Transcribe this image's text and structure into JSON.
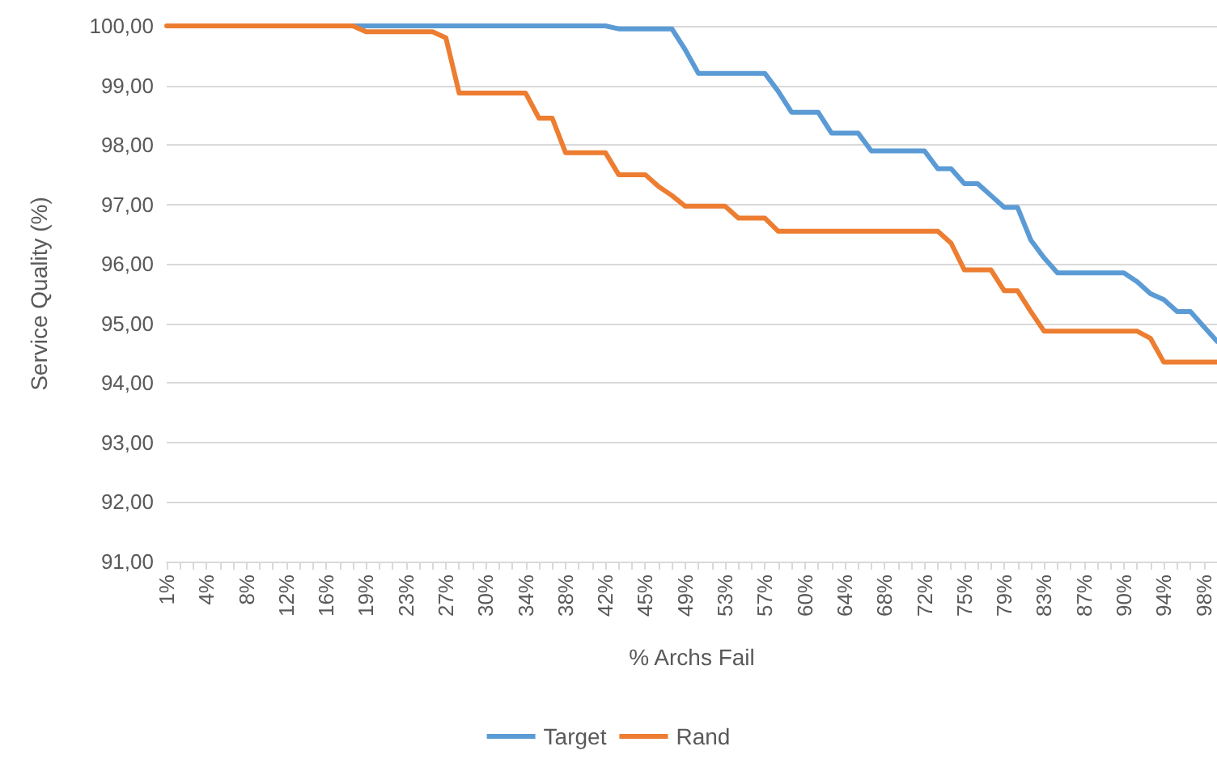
{
  "chart_data": {
    "type": "line",
    "xlabel": "% Archs Fail",
    "ylabel": "Service Quality (%)",
    "categories": [
      "1%",
      null,
      null,
      "4%",
      null,
      null,
      "8%",
      null,
      null,
      "12%",
      null,
      null,
      "16%",
      null,
      null,
      "19%",
      null,
      null,
      "23%",
      null,
      null,
      "27%",
      null,
      null,
      "30%",
      null,
      null,
      "34%",
      null,
      null,
      "38%",
      null,
      null,
      "42%",
      null,
      null,
      "45%",
      null,
      null,
      "49%",
      null,
      null,
      "53%",
      null,
      null,
      "57%",
      null,
      null,
      "60%",
      null,
      null,
      "64%",
      null,
      null,
      "68%",
      null,
      null,
      "72%",
      null,
      null,
      "75%",
      null,
      null,
      "79%",
      null,
      null,
      "83%",
      null,
      null,
      "87%",
      null,
      null,
      "90%",
      null,
      null,
      "94%",
      null,
      null,
      "98%",
      null
    ],
    "series": [
      {
        "name": "Target",
        "color": "#5b9bd5",
        "values": [
          null,
          null,
          null,
          null,
          null,
          null,
          null,
          null,
          null,
          null,
          null,
          null,
          null,
          null,
          100,
          100,
          100,
          100,
          100,
          100,
          100,
          100,
          100,
          100,
          100,
          100,
          100,
          100,
          100,
          100,
          100,
          100,
          100,
          100,
          99.95,
          99.95,
          99.95,
          99.95,
          99.95,
          99.6,
          99.2,
          99.2,
          99.2,
          99.2,
          99.2,
          99.2,
          98.9,
          98.55,
          98.55,
          98.55,
          98.2,
          98.2,
          98.2,
          97.9,
          97.9,
          97.9,
          97.9,
          97.9,
          97.6,
          97.6,
          97.35,
          97.35,
          97.15,
          96.95,
          96.95,
          96.4,
          96.1,
          95.85,
          95.85,
          95.85,
          95.85,
          95.85,
          95.85,
          95.7,
          95.5,
          95.4,
          95.2,
          95.2,
          94.95,
          94.7
        ]
      },
      {
        "name": "Rand",
        "color": "#ed7d31",
        "values": [
          100,
          100,
          100,
          100,
          100,
          100,
          100,
          100,
          100,
          100,
          100,
          100,
          100,
          100,
          100,
          99.9,
          99.9,
          99.9,
          99.9,
          99.9,
          99.9,
          99.8,
          98.87,
          98.87,
          98.87,
          98.87,
          98.87,
          98.87,
          98.45,
          98.45,
          97.87,
          97.87,
          97.87,
          97.87,
          97.5,
          97.5,
          97.5,
          97.3,
          97.15,
          96.97,
          96.97,
          96.97,
          96.97,
          96.77,
          96.77,
          96.77,
          96.55,
          96.55,
          96.55,
          96.55,
          96.55,
          96.55,
          96.55,
          96.55,
          96.55,
          96.55,
          96.55,
          96.55,
          96.55,
          96.35,
          95.9,
          95.9,
          95.9,
          95.55,
          95.55,
          95.2,
          94.87,
          94.87,
          94.87,
          94.87,
          94.87,
          94.87,
          94.87,
          94.87,
          94.75,
          94.35,
          94.35,
          94.35,
          94.35,
          94.35
        ]
      }
    ],
    "ylim": [
      91,
      100
    ],
    "yticks": [
      {
        "value": 91,
        "label": "91,00"
      },
      {
        "value": 92,
        "label": "92,00"
      },
      {
        "value": 93,
        "label": "93,00"
      },
      {
        "value": 94,
        "label": "94,00"
      },
      {
        "value": 95,
        "label": "95,00"
      },
      {
        "value": 96,
        "label": "96,00"
      },
      {
        "value": 97,
        "label": "97,00"
      },
      {
        "value": 98,
        "label": "98,00"
      },
      {
        "value": 99,
        "label": "99,00"
      },
      {
        "value": 100,
        "label": "100,00"
      }
    ],
    "grid": "y",
    "legend": "bottom",
    "marker": "none",
    "line_style": "solid"
  }
}
